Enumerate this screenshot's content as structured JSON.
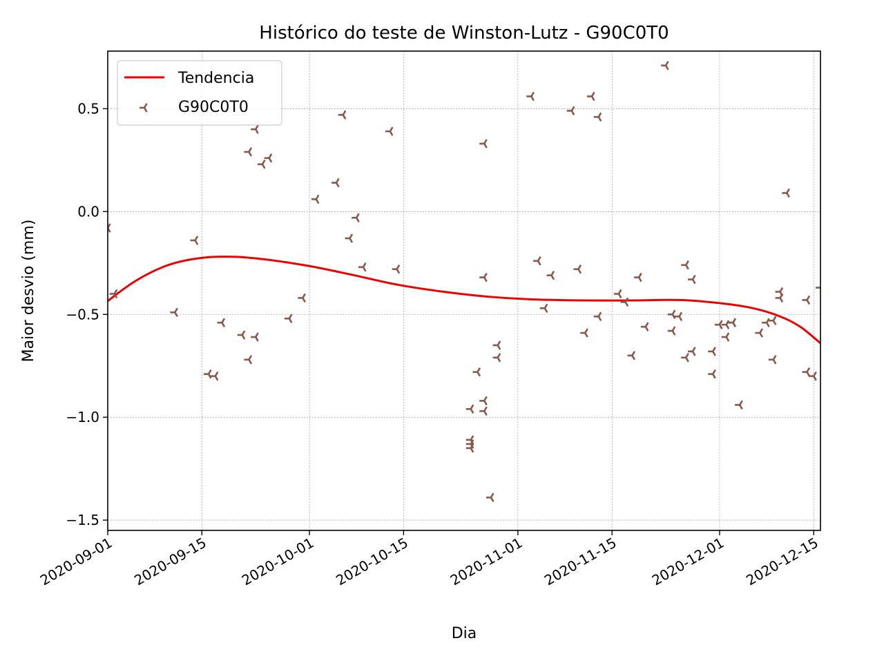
{
  "chart_data": {
    "type": "scatter",
    "title": "Histórico do teste de Winston-Lutz - G90C0T0",
    "xlabel": "Dia",
    "ylabel": "Maior desvio (mm)",
    "xlim": [
      "2020-09-01",
      "2020-12-16"
    ],
    "ylim": [
      -1.55,
      0.78
    ],
    "grid": true,
    "legend_position": "top-left",
    "x_ticks": [
      "2020-09-01",
      "2020-09-15",
      "2020-10-01",
      "2020-10-15",
      "2020-11-01",
      "2020-11-15",
      "2020-12-01",
      "2020-12-15"
    ],
    "y_ticks": [
      0.5,
      0.0,
      -0.5,
      -1.0,
      -1.5
    ],
    "y_tick_labels": [
      "0.5",
      "0.0",
      "−0.5",
      "−1.0",
      "−1.5"
    ],
    "colors": {
      "trend": "#ee0000",
      "points": "#8c564b",
      "grid": "#888888"
    },
    "series": [
      {
        "name": "Tendencia",
        "kind": "line",
        "x": [
          "2020-08-31",
          "2020-09-05",
          "2020-09-10",
          "2020-09-15",
          "2020-09-20",
          "2020-09-25",
          "2020-10-01",
          "2020-10-07",
          "2020-10-14",
          "2020-10-21",
          "2020-10-28",
          "2020-11-04",
          "2020-11-11",
          "2020-11-18",
          "2020-11-25",
          "2020-12-01",
          "2020-12-06",
          "2020-12-10",
          "2020-12-13",
          "2020-12-16"
        ],
        "y": [
          -0.46,
          -0.34,
          -0.26,
          -0.225,
          -0.22,
          -0.235,
          -0.265,
          -0.305,
          -0.355,
          -0.39,
          -0.415,
          -0.428,
          -0.432,
          -0.432,
          -0.43,
          -0.445,
          -0.47,
          -0.51,
          -0.56,
          -0.64
        ]
      },
      {
        "name": "G90C0T0",
        "kind": "scatter",
        "marker": "tri_left",
        "points": [
          [
            "2020-09-01",
            -0.08
          ],
          [
            "2020-09-02",
            -0.4
          ],
          [
            "2020-09-11",
            -0.49
          ],
          [
            "2020-09-14",
            -0.14
          ],
          [
            "2020-09-16",
            -0.79
          ],
          [
            "2020-09-17",
            -0.8
          ],
          [
            "2020-09-18",
            -0.54
          ],
          [
            "2020-09-21",
            -0.6
          ],
          [
            "2020-09-22",
            0.29
          ],
          [
            "2020-09-22",
            -0.72
          ],
          [
            "2020-09-23",
            0.4
          ],
          [
            "2020-09-23",
            -0.61
          ],
          [
            "2020-09-24",
            0.23
          ],
          [
            "2020-09-25",
            0.26
          ],
          [
            "2020-09-28",
            -0.52
          ],
          [
            "2020-09-30",
            -0.42
          ],
          [
            "2020-10-02",
            0.06
          ],
          [
            "2020-10-05",
            0.14
          ],
          [
            "2020-10-06",
            0.47
          ],
          [
            "2020-10-07",
            -0.13
          ],
          [
            "2020-10-08",
            -0.03
          ],
          [
            "2020-10-09",
            -0.27
          ],
          [
            "2020-10-13",
            0.39
          ],
          [
            "2020-10-14",
            -0.28
          ],
          [
            "2020-10-25",
            -0.96
          ],
          [
            "2020-10-25",
            -1.11
          ],
          [
            "2020-10-25",
            -1.13
          ],
          [
            "2020-10-25",
            -1.15
          ],
          [
            "2020-10-26",
            -0.78
          ],
          [
            "2020-10-27",
            0.33
          ],
          [
            "2020-10-27",
            -0.32
          ],
          [
            "2020-10-27",
            -0.92
          ],
          [
            "2020-10-27",
            -0.97
          ],
          [
            "2020-10-28",
            -1.39
          ],
          [
            "2020-10-29",
            -0.65
          ],
          [
            "2020-10-29",
            -0.71
          ],
          [
            "2020-11-03",
            0.56
          ],
          [
            "2020-11-04",
            -0.24
          ],
          [
            "2020-11-05",
            -0.47
          ],
          [
            "2020-11-06",
            -0.31
          ],
          [
            "2020-11-09",
            0.49
          ],
          [
            "2020-11-10",
            -0.28
          ],
          [
            "2020-11-11",
            -0.59
          ],
          [
            "2020-11-12",
            0.56
          ],
          [
            "2020-11-13",
            0.46
          ],
          [
            "2020-11-13",
            -0.51
          ],
          [
            "2020-11-16",
            -0.4
          ],
          [
            "2020-11-17",
            -0.44
          ],
          [
            "2020-11-18",
            -0.7
          ],
          [
            "2020-11-19",
            -0.32
          ],
          [
            "2020-11-20",
            -0.56
          ],
          [
            "2020-11-23",
            0.71
          ],
          [
            "2020-11-24",
            -0.5
          ],
          [
            "2020-11-24",
            -0.58
          ],
          [
            "2020-11-25",
            -0.51
          ],
          [
            "2020-11-26",
            -0.26
          ],
          [
            "2020-11-26",
            -0.71
          ],
          [
            "2020-11-27",
            -0.33
          ],
          [
            "2020-11-27",
            -0.68
          ],
          [
            "2020-11-30",
            -0.68
          ],
          [
            "2020-11-30",
            -0.79
          ],
          [
            "2020-12-01",
            -0.55
          ],
          [
            "2020-12-02",
            -0.55
          ],
          [
            "2020-12-02",
            -0.61
          ],
          [
            "2020-12-03",
            -0.54
          ],
          [
            "2020-12-03",
            -0.54
          ],
          [
            "2020-12-04",
            -0.94
          ],
          [
            "2020-12-07",
            -0.59
          ],
          [
            "2020-12-08",
            -0.54
          ],
          [
            "2020-12-09",
            -0.53
          ],
          [
            "2020-12-09",
            -0.72
          ],
          [
            "2020-12-10",
            -0.39
          ],
          [
            "2020-12-10",
            -0.42
          ],
          [
            "2020-12-11",
            0.09
          ],
          [
            "2020-12-14",
            -0.43
          ],
          [
            "2020-12-14",
            -0.78
          ],
          [
            "2020-12-15",
            -0.8
          ],
          [
            "2020-12-16",
            -0.37
          ]
        ]
      }
    ]
  }
}
